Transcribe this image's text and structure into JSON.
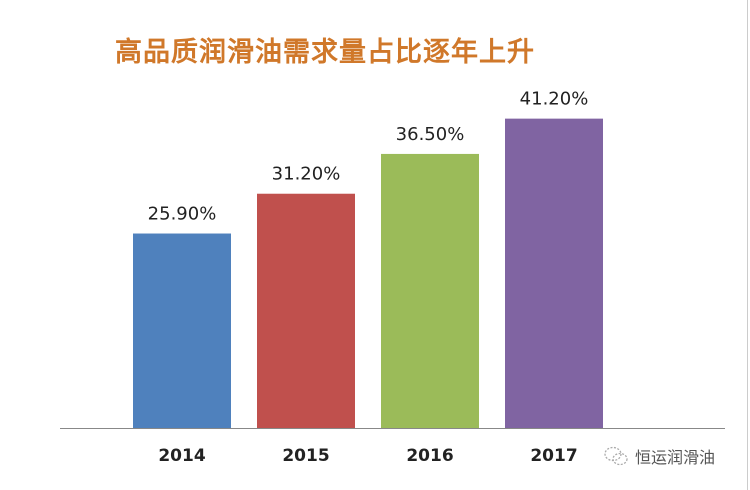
{
  "chart_data": {
    "type": "bar",
    "title": "高品质润滑油需求量占比逐年上升",
    "categories": [
      "2014",
      "2015",
      "2016",
      "2017"
    ],
    "values": [
      25.9,
      31.2,
      36.5,
      41.2
    ],
    "data_labels": [
      "25.90%",
      "31.20%",
      "36.50%",
      "41.20%"
    ],
    "colors": [
      "#4f81bd",
      "#c0504d",
      "#9bbb59",
      "#8064a2"
    ],
    "xlabel": "",
    "ylabel": "",
    "ylim": [
      0,
      57
    ],
    "grid": false,
    "legend": "none"
  },
  "watermark": {
    "text": "恒运润滑油",
    "icon": "wechat-icon"
  }
}
